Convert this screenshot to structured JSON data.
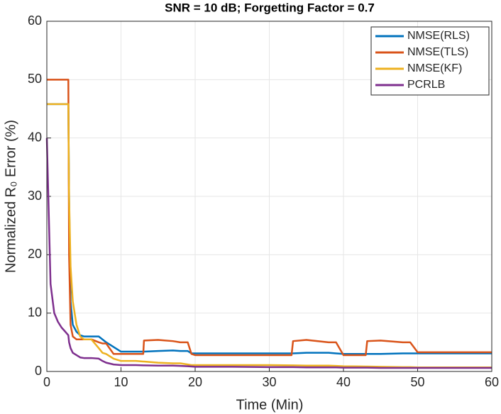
{
  "chart_data": {
    "type": "line",
    "title": "SNR = 10 dB; Forgetting Factor = 0.7",
    "xlabel": "Time (Min)",
    "ylabel": "Normalized R₀ Error (%)",
    "x": [
      0,
      0.5,
      1,
      1.5,
      2,
      2.5,
      2.9,
      3,
      3.2,
      3.5,
      4,
      4.5,
      5,
      6,
      7,
      7.5,
      8,
      9,
      10,
      12,
      13,
      13.1,
      15,
      17,
      18,
      19,
      19.5,
      20,
      25,
      30,
      33,
      33.2,
      35,
      38,
      39,
      40,
      43,
      43.2,
      45,
      48,
      49,
      50,
      55,
      60
    ],
    "series": [
      {
        "name": "NMSE(RLS)",
        "color": "#0072BD",
        "values": [
          45.8,
          45.8,
          45.8,
          45.8,
          45.8,
          45.8,
          45.8,
          30,
          12,
          8,
          6.8,
          6.2,
          6,
          6,
          6,
          5.5,
          5,
          4.2,
          3.4,
          3.4,
          3.4,
          3.4,
          3.5,
          3.6,
          3.5,
          3.5,
          3.1,
          3.1,
          3.1,
          3.1,
          3.1,
          3.1,
          3.2,
          3.2,
          3.1,
          3.0,
          3.0,
          3.0,
          3.0,
          3.1,
          3.1,
          3.1,
          3.1,
          3.1
        ]
      },
      {
        "name": "NMSE(TLS)",
        "color": "#D95319",
        "values": [
          50,
          50,
          50,
          50,
          50,
          50,
          50,
          20,
          8,
          6,
          5.5,
          5.5,
          5.5,
          5.5,
          5,
          4.8,
          4.8,
          3,
          3,
          3,
          3,
          5.3,
          5.4,
          5.2,
          5.0,
          5.0,
          3.0,
          2.8,
          2.8,
          2.8,
          2.8,
          5.2,
          5.4,
          5.0,
          5.0,
          2.8,
          2.8,
          5.2,
          5.3,
          5.0,
          5.0,
          3.3,
          3.3,
          3.3
        ]
      },
      {
        "name": "NMSE(KF)",
        "color": "#EDB120",
        "values": [
          45.8,
          45.8,
          45.8,
          45.8,
          45.8,
          45.8,
          45.8,
          30,
          18,
          12,
          8,
          6,
          5.5,
          5.5,
          4,
          3.2,
          3,
          2.2,
          1.8,
          1.8,
          1.7,
          1.7,
          1.5,
          1.4,
          1.4,
          1.2,
          1.1,
          1.1,
          1.1,
          1.1,
          1.05,
          1.05,
          1.0,
          1.0,
          0.95,
          0.9,
          0.85,
          0.85,
          0.8,
          0.75,
          0.75,
          0.7,
          0.7,
          0.7
        ]
      },
      {
        "name": "PCRLB",
        "color": "#7E2F8E",
        "values": [
          40,
          15,
          10,
          8.5,
          7.5,
          6.8,
          6.2,
          5,
          4,
          3.2,
          2.8,
          2.4,
          2.3,
          2.3,
          2.2,
          1.8,
          1.5,
          1.2,
          1.1,
          1.1,
          1.05,
          1.05,
          1.0,
          1.0,
          0.95,
          0.9,
          0.85,
          0.8,
          0.8,
          0.75,
          0.75,
          0.75,
          0.7,
          0.7,
          0.7,
          0.65,
          0.65,
          0.65,
          0.6,
          0.6,
          0.6,
          0.6,
          0.6,
          0.6
        ]
      }
    ],
    "xlim": [
      0,
      60
    ],
    "xticks": [
      0,
      10,
      20,
      30,
      40,
      50,
      60
    ],
    "ylim": [
      0,
      60
    ],
    "yticks": [
      0,
      10,
      20,
      30,
      40,
      50,
      60
    ],
    "grid": true,
    "legend": "northeast"
  }
}
